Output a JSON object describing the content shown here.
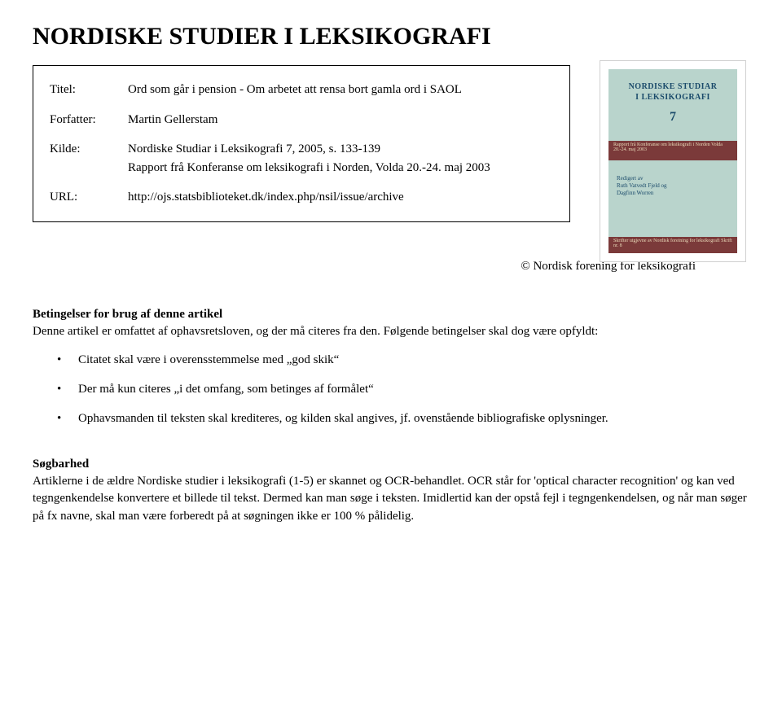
{
  "page_title": "NORDISKE STUDIER I LEKSIKOGRAFI",
  "info": {
    "titel_label": "Titel:",
    "titel_value": "Ord som går i pension - Om arbetet att rensa bort gamla ord i SAOL",
    "forfatter_label": "Forfatter:",
    "forfatter_value": "Martin Gellerstam",
    "kilde_label": "Kilde:",
    "kilde_line1": "Nordiske Studiar i Leksikografi 7, 2005, s. 133-139",
    "kilde_line2": "Rapport frå Konferanse om leksikografi i Norden, Volda 20.-24. maj 2003",
    "url_label": "URL:",
    "url_value": "http://ojs.statsbiblioteket.dk/index.php/nsil/issue/archive"
  },
  "cover": {
    "line1": "NORDISKE STUDIAR",
    "line2": "I LEKSIKOGRAFI",
    "num": "7",
    "red1": "Rapport frå Konferanse om leksikografi i Norden Volda 20.-24. maj 2003",
    "small1": "Redigert av",
    "small2": "Ruth Vatvedt Fjeld og",
    "small3": "Dagfinn Worren",
    "red2": "Skrifter utgjevne av Nordisk foreining for leksikografi Skrift nr. 8"
  },
  "copyright": "© Nordisk forening for leksikografi",
  "betingelser": {
    "heading": "Betingelser for brug af denne artikel",
    "intro": "Denne artikel er omfattet af ophavsretsloven, og der må citeres fra den. Følgende betingelser skal dog være opfyldt:",
    "b1": "Citatet skal være i overensstemmelse med „god skik“",
    "b2": "Der må kun citeres „i det omfang, som betinges af formålet“",
    "b3": "Ophavsmanden til teksten skal krediteres, og kilden skal angives, jf. ovenstående bibliografiske oplysninger."
  },
  "sogbarhed": {
    "heading": "Søgbarhed",
    "text": "Artiklerne i de ældre Nordiske studier i leksikografi (1-5) er skannet og OCR-behandlet. OCR står for 'optical character recognition' og kan ved tegngenkendelse konvertere et billede til tekst. Dermed kan man søge i teksten. Imidlertid kan der opstå fejl i tegngenkendelsen, og når man søger på fx navne, skal man være forberedt på at søgningen ikke er 100 % pålidelig."
  }
}
